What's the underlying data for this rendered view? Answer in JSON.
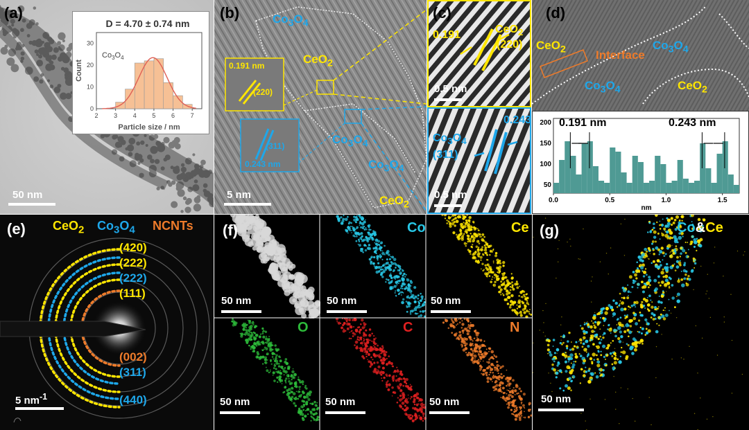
{
  "panels": {
    "a": {
      "label": "(a)",
      "scale": "50 nm",
      "inset": {
        "equation": "D = 4.70 ± 0.74 nm",
        "material": "Co3O4",
        "xlabel": "Particle size / nm",
        "ylabel": "Count",
        "xticks": [
          "2",
          "3",
          "4",
          "5",
          "6",
          "7"
        ],
        "yticks": [
          "0",
          "10",
          "20",
          "30"
        ]
      }
    },
    "b": {
      "label": "(b)",
      "scale": "5 nm",
      "d1": "0.191 nm",
      "d1_plane": "(220)",
      "d2": "0.243 nm",
      "d2_plane": "(311)",
      "phase_ceo2": "CeO2",
      "phase_co3o4": "Co3O4"
    },
    "c": {
      "label": "(c)",
      "top_d": "0.191",
      "top_phase": "CeO2",
      "top_plane": "(220)",
      "top_scale": "0.5 nm",
      "bot_d": "0.243",
      "bot_phase": "Co3O4",
      "bot_plane": "(311)",
      "bot_scale": "0.5 nm"
    },
    "d": {
      "label": "(d)",
      "ceo2": "CeO2",
      "co3o4": "Co3O4",
      "interface": "Interface",
      "profile": {
        "ann1": "0.191 nm",
        "ann2": "0.243 nm",
        "xlabel": "nm",
        "xticks": [
          "0.0",
          "0.5",
          "1.0",
          "1.5"
        ],
        "yticks": [
          "50",
          "100",
          "150",
          "200"
        ]
      }
    },
    "e": {
      "label": "(e)",
      "legend_ceo2": "CeO2",
      "legend_co3o4": "Co3O4",
      "legend_ncnt": "NCNTs",
      "rings": [
        "(420)",
        "(222)",
        "(222)",
        "(111)",
        "(002)",
        "(311)",
        "(440)"
      ],
      "scale": "5 nm-1"
    },
    "f": {
      "label": "(f)",
      "maps": [
        {
          "el": "",
          "scale": "50 nm"
        },
        {
          "el": "Co",
          "scale": "50 nm"
        },
        {
          "el": "Ce",
          "scale": "50 nm"
        },
        {
          "el": "O",
          "scale": "50 nm"
        },
        {
          "el": "C",
          "scale": "50 nm"
        },
        {
          "el": "N",
          "scale": "50 nm"
        }
      ]
    },
    "g": {
      "label": "(g)",
      "co": "Co",
      "amp": "&",
      "ce": "Ce",
      "scale": "50 nm"
    }
  },
  "chart_data": [
    {
      "type": "bar",
      "title": "D = 4.70 ± 0.74 nm",
      "xlabel": "Particle size / nm",
      "ylabel": "Count",
      "categories": [
        "3.0",
        "3.5",
        "4.0",
        "4.5",
        "5.0",
        "5.5",
        "6.0",
        "6.5"
      ],
      "values": [
        3,
        9,
        21,
        22,
        23,
        12,
        6,
        2
      ],
      "xlim": [
        2,
        7.5
      ],
      "ylim": [
        0,
        35
      ],
      "fit": "gaussian"
    },
    {
      "type": "bar",
      "xlabel": "nm",
      "xlim": [
        0,
        1.65
      ],
      "ylim": [
        30,
        210
      ],
      "x": [
        0.0,
        0.05,
        0.1,
        0.15,
        0.2,
        0.25,
        0.3,
        0.35,
        0.4,
        0.45,
        0.5,
        0.55,
        0.6,
        0.65,
        0.7,
        0.75,
        0.8,
        0.85,
        0.9,
        0.95,
        1.0,
        1.05,
        1.1,
        1.15,
        1.2,
        1.25,
        1.3,
        1.35,
        1.4,
        1.45,
        1.5,
        1.55,
        1.6
      ],
      "values": [
        55,
        110,
        155,
        120,
        75,
        150,
        155,
        95,
        60,
        55,
        140,
        130,
        80,
        55,
        120,
        105,
        55,
        60,
        120,
        100,
        55,
        60,
        110,
        65,
        55,
        60,
        150,
        90,
        55,
        125,
        155,
        75,
        50
      ]
    }
  ]
}
